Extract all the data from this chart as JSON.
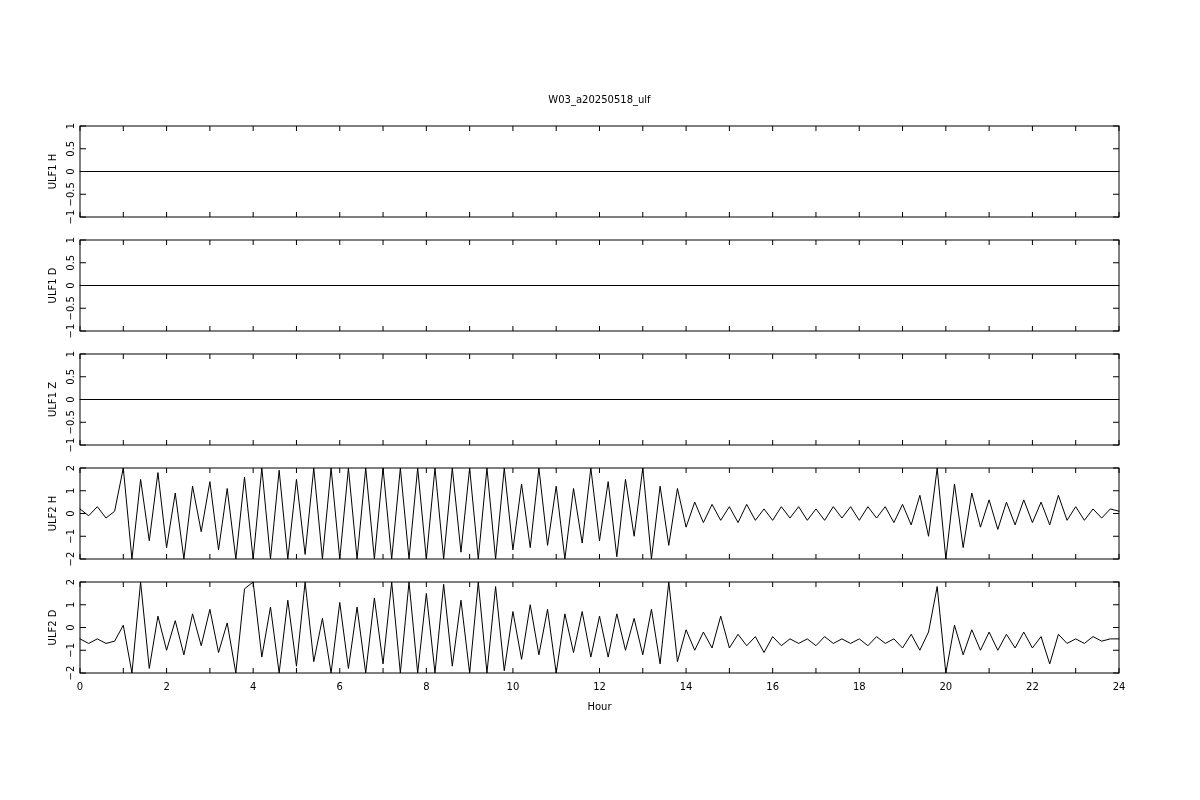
{
  "chart_data": [
    {
      "type": "line",
      "title": "W03_a20250518_ulf",
      "ylabel": "ULF1 H",
      "x": [
        0,
        24
      ],
      "values": [
        0,
        0
      ],
      "color": "#000000",
      "xlim": [
        0,
        24
      ],
      "ylim": [
        -1,
        1
      ],
      "yticks": [
        -1,
        -0.5,
        0,
        0.5,
        1
      ],
      "xticks": [
        0,
        {
          "value": 1,
          "label": null
        },
        2,
        {
          "value": 3,
          "label": null
        },
        4,
        {
          "value": 5,
          "label": null
        },
        6,
        {
          "value": 7,
          "label": null
        },
        8,
        {
          "value": 9,
          "label": null
        },
        10,
        {
          "value": 11,
          "label": null
        },
        12,
        {
          "value": 13,
          "label": null
        },
        14,
        {
          "value": 15,
          "label": null
        },
        16,
        {
          "value": 17,
          "label": null
        },
        18,
        {
          "value": 19,
          "label": null
        },
        20,
        {
          "value": 21,
          "label": null
        },
        22,
        {
          "value": 23,
          "label": null
        },
        24
      ],
      "tick_labels": "y"
    },
    {
      "type": "line",
      "ylabel": "ULF1 D",
      "x": [
        0,
        24
      ],
      "values": [
        0,
        0
      ],
      "color": "#000000",
      "xlim": [
        0,
        24
      ],
      "ylim": [
        -1,
        1
      ],
      "yticks": [
        -1,
        -0.5,
        0,
        0.5,
        1
      ],
      "xticks": [
        0,
        {
          "value": 1,
          "label": null
        },
        2,
        {
          "value": 3,
          "label": null
        },
        4,
        {
          "value": 5,
          "label": null
        },
        6,
        {
          "value": 7,
          "label": null
        },
        8,
        {
          "value": 9,
          "label": null
        },
        10,
        {
          "value": 11,
          "label": null
        },
        12,
        {
          "value": 13,
          "label": null
        },
        14,
        {
          "value": 15,
          "label": null
        },
        16,
        {
          "value": 17,
          "label": null
        },
        18,
        {
          "value": 19,
          "label": null
        },
        20,
        {
          "value": 21,
          "label": null
        },
        22,
        {
          "value": 23,
          "label": null
        },
        24
      ],
      "tick_labels": "y"
    },
    {
      "type": "line",
      "ylabel": "ULF1 Z",
      "x": [
        0,
        24
      ],
      "values": [
        0,
        0
      ],
      "color": "#000000",
      "xlim": [
        0,
        24
      ],
      "ylim": [
        -1,
        1
      ],
      "yticks": [
        -1,
        -0.5,
        0,
        0.5,
        1
      ],
      "xticks": [
        0,
        {
          "value": 1,
          "label": null
        },
        2,
        {
          "value": 3,
          "label": null
        },
        4,
        {
          "value": 5,
          "label": null
        },
        6,
        {
          "value": 7,
          "label": null
        },
        8,
        {
          "value": 9,
          "label": null
        },
        10,
        {
          "value": 11,
          "label": null
        },
        12,
        {
          "value": 13,
          "label": null
        },
        14,
        {
          "value": 15,
          "label": null
        },
        16,
        {
          "value": 17,
          "label": null
        },
        18,
        {
          "value": 19,
          "label": null
        },
        20,
        {
          "value": 21,
          "label": null
        },
        22,
        {
          "value": 23,
          "label": null
        },
        24
      ],
      "tick_labels": "y"
    },
    {
      "type": "line",
      "ylabel": "ULF2 H",
      "x": [
        0,
        0.2,
        0.4,
        0.6,
        0.8,
        1,
        1.2,
        1.4,
        1.6,
        1.8,
        2,
        2.2,
        2.4,
        2.6,
        2.8,
        3,
        3.2,
        3.4,
        3.6,
        3.8,
        4,
        4.2,
        4.4,
        4.6,
        4.8,
        5,
        5.2,
        5.4,
        5.6,
        5.8,
        6,
        6.2,
        6.4,
        6.6,
        6.8,
        7,
        7.2,
        7.4,
        7.6,
        7.8,
        8,
        8.2,
        8.4,
        8.6,
        8.8,
        9,
        9.2,
        9.4,
        9.6,
        9.8,
        10,
        10.2,
        10.4,
        10.6,
        10.8,
        11,
        11.2,
        11.4,
        11.6,
        11.8,
        12,
        12.2,
        12.4,
        12.6,
        12.8,
        13,
        13.2,
        13.4,
        13.6,
        13.8,
        14,
        14.2,
        14.4,
        14.6,
        14.8,
        15,
        15.2,
        15.4,
        15.6,
        15.8,
        16,
        16.2,
        16.4,
        16.6,
        16.8,
        17,
        17.2,
        17.4,
        17.6,
        17.8,
        18,
        18.2,
        18.4,
        18.6,
        18.8,
        19,
        19.2,
        19.4,
        19.6,
        19.8,
        20,
        20.2,
        20.4,
        20.6,
        20.8,
        21,
        21.2,
        21.4,
        21.6,
        21.8,
        22,
        22.2,
        22.4,
        22.6,
        22.8,
        23,
        23.2,
        23.4,
        23.6,
        23.8,
        24
      ],
      "values": [
        0.2,
        -0.1,
        0.3,
        -0.2,
        0.1,
        2,
        -2,
        1.5,
        -1.2,
        1.8,
        -1.5,
        0.9,
        -2,
        1.2,
        -0.8,
        1.4,
        -1.6,
        1.1,
        -2,
        1.6,
        -2,
        2,
        -2,
        1.9,
        -2,
        1.5,
        -1.8,
        2,
        -2,
        2,
        -2,
        2,
        -2,
        2,
        -2,
        2,
        -2,
        2,
        -2,
        2,
        -2,
        2,
        -2,
        2,
        -1.7,
        2,
        -2,
        2,
        -2,
        2,
        -1.6,
        1.3,
        -1.5,
        2,
        -1.4,
        1.2,
        -2,
        1.1,
        -1.3,
        2,
        -1.2,
        1.4,
        -1.9,
        1.5,
        -1,
        2,
        -2,
        1.2,
        -1.4,
        1.1,
        -0.6,
        0.5,
        -0.4,
        0.4,
        -0.3,
        0.3,
        -0.4,
        0.4,
        -0.3,
        0.2,
        -0.3,
        0.3,
        -0.2,
        0.3,
        -0.3,
        0.2,
        -0.3,
        0.3,
        -0.2,
        0.3,
        -0.3,
        0.3,
        -0.2,
        0.3,
        -0.4,
        0.4,
        -0.5,
        0.8,
        -1,
        2,
        -2,
        1.3,
        -1.5,
        0.9,
        -0.6,
        0.6,
        -0.7,
        0.5,
        -0.5,
        0.6,
        -0.4,
        0.5,
        -0.5,
        0.8,
        -0.3,
        0.3,
        -0.3,
        0.2,
        -0.2,
        0.2,
        0.1
      ],
      "color": "#000000",
      "xlim": [
        0,
        24
      ],
      "ylim": [
        -2,
        2
      ],
      "yticks": [
        -2,
        -1,
        0,
        1,
        2
      ],
      "xticks": [
        0,
        {
          "value": 1,
          "label": null
        },
        2,
        {
          "value": 3,
          "label": null
        },
        4,
        {
          "value": 5,
          "label": null
        },
        6,
        {
          "value": 7,
          "label": null
        },
        8,
        {
          "value": 9,
          "label": null
        },
        10,
        {
          "value": 11,
          "label": null
        },
        12,
        {
          "value": 13,
          "label": null
        },
        14,
        {
          "value": 15,
          "label": null
        },
        16,
        {
          "value": 17,
          "label": null
        },
        18,
        {
          "value": 19,
          "label": null
        },
        20,
        {
          "value": 21,
          "label": null
        },
        22,
        {
          "value": 23,
          "label": null
        },
        24
      ],
      "tick_labels": "y"
    },
    {
      "type": "line",
      "ylabel": "ULF2 D",
      "xlabel": "Hour",
      "x": [
        0,
        0.2,
        0.4,
        0.6,
        0.8,
        1,
        1.2,
        1.4,
        1.6,
        1.8,
        2,
        2.2,
        2.4,
        2.6,
        2.8,
        3,
        3.2,
        3.4,
        3.6,
        3.8,
        4,
        4.2,
        4.4,
        4.6,
        4.8,
        5,
        5.2,
        5.4,
        5.6,
        5.8,
        6,
        6.2,
        6.4,
        6.6,
        6.8,
        7,
        7.2,
        7.4,
        7.6,
        7.8,
        8,
        8.2,
        8.4,
        8.6,
        8.8,
        9,
        9.2,
        9.4,
        9.6,
        9.8,
        10,
        10.2,
        10.4,
        10.6,
        10.8,
        11,
        11.2,
        11.4,
        11.6,
        11.8,
        12,
        12.2,
        12.4,
        12.6,
        12.8,
        13,
        13.2,
        13.4,
        13.6,
        13.8,
        14,
        14.2,
        14.4,
        14.6,
        14.8,
        15,
        15.2,
        15.4,
        15.6,
        15.8,
        16,
        16.2,
        16.4,
        16.6,
        16.8,
        17,
        17.2,
        17.4,
        17.6,
        17.8,
        18,
        18.2,
        18.4,
        18.6,
        18.8,
        19,
        19.2,
        19.4,
        19.6,
        19.8,
        20,
        20.2,
        20.4,
        20.6,
        20.8,
        21,
        21.2,
        21.4,
        21.6,
        21.8,
        22,
        22.2,
        22.4,
        22.6,
        22.8,
        23,
        23.2,
        23.4,
        23.6,
        23.8,
        24
      ],
      "values": [
        -0.5,
        -0.7,
        -0.5,
        -0.7,
        -0.6,
        0.1,
        -2,
        2,
        -1.8,
        0.5,
        -1,
        0.3,
        -1.2,
        0.6,
        -0.8,
        0.8,
        -1.1,
        0.2,
        -2,
        1.7,
        2,
        -1.3,
        0.9,
        -2,
        1.2,
        -1.7,
        2,
        -1.5,
        0.4,
        -2,
        1.1,
        -1.8,
        0.9,
        -2,
        1.3,
        -1.6,
        2,
        -2,
        2,
        -2,
        1.5,
        -2,
        1.9,
        -1.7,
        1.2,
        -2,
        2,
        -2,
        1.8,
        -1.9,
        0.7,
        -1.4,
        1,
        -1.2,
        0.8,
        -2,
        0.6,
        -1.1,
        0.7,
        -1.3,
        0.5,
        -1.3,
        0.6,
        -1,
        0.4,
        -1.2,
        0.8,
        -1.6,
        2,
        -1.5,
        -0.1,
        -1,
        -0.2,
        -0.9,
        0.5,
        -0.9,
        -0.3,
        -0.8,
        -0.4,
        -1.1,
        -0.4,
        -0.8,
        -0.5,
        -0.7,
        -0.5,
        -0.8,
        -0.4,
        -0.7,
        -0.5,
        -0.7,
        -0.5,
        -0.8,
        -0.4,
        -0.7,
        -0.5,
        -0.9,
        -0.3,
        -1,
        -0.2,
        1.8,
        -2,
        0.1,
        -1.2,
        -0.1,
        -1,
        -0.2,
        -1,
        -0.3,
        -0.9,
        -0.2,
        -0.9,
        -0.4,
        -1.6,
        -0.3,
        -0.7,
        -0.5,
        -0.7,
        -0.4,
        -0.6,
        -0.5,
        -0.5
      ],
      "color": "#000000",
      "xlim": [
        0,
        24
      ],
      "ylim": [
        -2,
        2
      ],
      "yticks": [
        -2,
        -1,
        0,
        1,
        2
      ],
      "xticks": [
        0,
        {
          "value": 1,
          "label": null
        },
        2,
        {
          "value": 3,
          "label": null
        },
        4,
        {
          "value": 5,
          "label": null
        },
        6,
        {
          "value": 7,
          "label": null
        },
        8,
        {
          "value": 9,
          "label": null
        },
        10,
        {
          "value": 11,
          "label": null
        },
        12,
        {
          "value": 13,
          "label": null
        },
        14,
        {
          "value": 15,
          "label": null
        },
        16,
        {
          "value": 17,
          "label": null
        },
        18,
        {
          "value": 19,
          "label": null
        },
        20,
        {
          "value": 21,
          "label": null
        },
        22,
        {
          "value": 23,
          "label": null
        },
        24
      ]
    }
  ]
}
